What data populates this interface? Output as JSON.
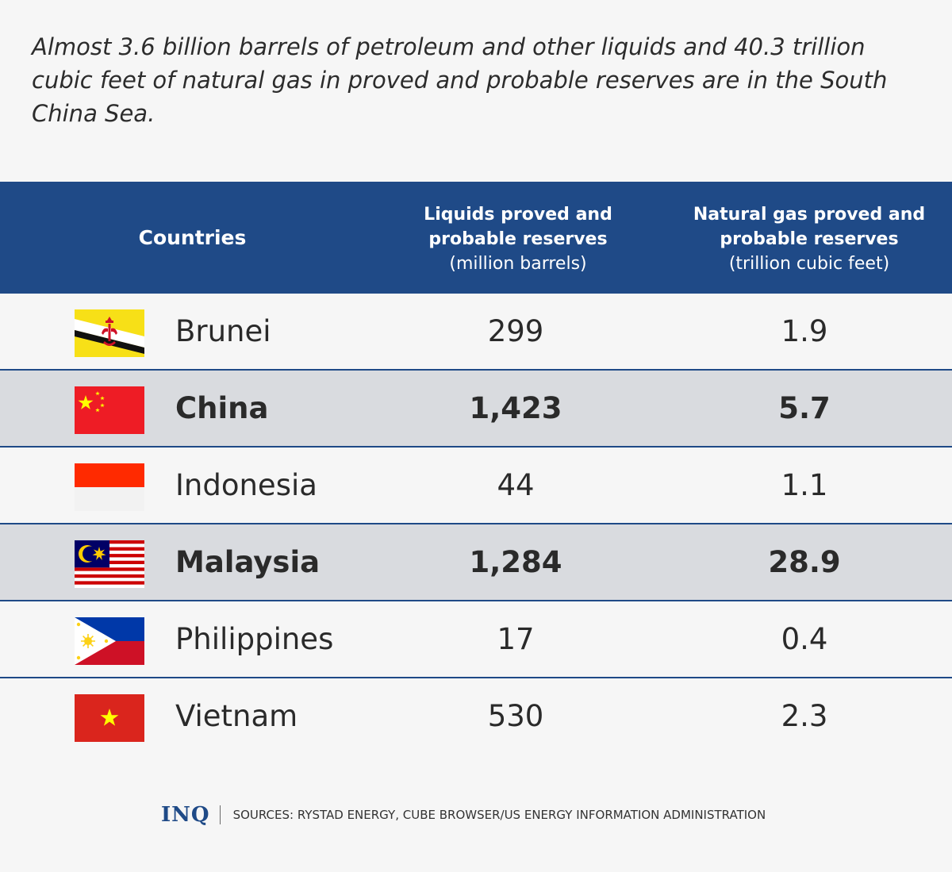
{
  "intro": "Almost 3.6 billion barrels of petroleum and other liquids and 40.3 trillion cubic feet of natural gas in proved and probable reserves are in the South China Sea.",
  "header": {
    "countries": "Countries",
    "liquids_title": "Liquids proved and probable reserves",
    "liquids_unit": "(million barrels)",
    "gas_title": "Natural gas proved and probable reserves",
    "gas_unit": "(trillion cubic feet)"
  },
  "rows": [
    {
      "country": "Brunei",
      "liquids": "299",
      "gas": "1.9",
      "flag": "brunei-flag"
    },
    {
      "country": "China",
      "liquids": "1,423",
      "gas": "5.7",
      "flag": "china-flag"
    },
    {
      "country": "Indonesia",
      "liquids": "44",
      "gas": "1.1",
      "flag": "indonesia-flag"
    },
    {
      "country": "Malaysia",
      "liquids": "1,284",
      "gas": "28.9",
      "flag": "malaysia-flag"
    },
    {
      "country": "Philippines",
      "liquids": "17",
      "gas": "0.4",
      "flag": "philippines-flag"
    },
    {
      "country": "Vietnam",
      "liquids": "530",
      "gas": "2.3",
      "flag": "vietnam-flag"
    }
  ],
  "footer": {
    "logo": "INQ",
    "sources": "SOURCES: RYSTAD ENERGY, CUBE BROWSER/US ENERGY INFORMATION ADMINISTRATION"
  },
  "colors": {
    "header_bg": "#1f4a87",
    "shaded_row": "#d9dbdf",
    "page_bg": "#f6f6f6"
  },
  "chart_data": {
    "type": "table",
    "title": "",
    "columns": [
      "Countries",
      "Liquids proved and probable reserves (million barrels)",
      "Natural gas proved and probable reserves (trillion cubic feet)"
    ],
    "categories": [
      "Brunei",
      "China",
      "Indonesia",
      "Malaysia",
      "Philippines",
      "Vietnam"
    ],
    "series": [
      {
        "name": "Liquids proved and probable reserves (million barrels)",
        "values": [
          299,
          1423,
          44,
          1284,
          17,
          530
        ]
      },
      {
        "name": "Natural gas proved and probable reserves (trillion cubic feet)",
        "values": [
          1.9,
          5.7,
          1.1,
          28.9,
          0.4,
          2.3
        ]
      }
    ]
  }
}
